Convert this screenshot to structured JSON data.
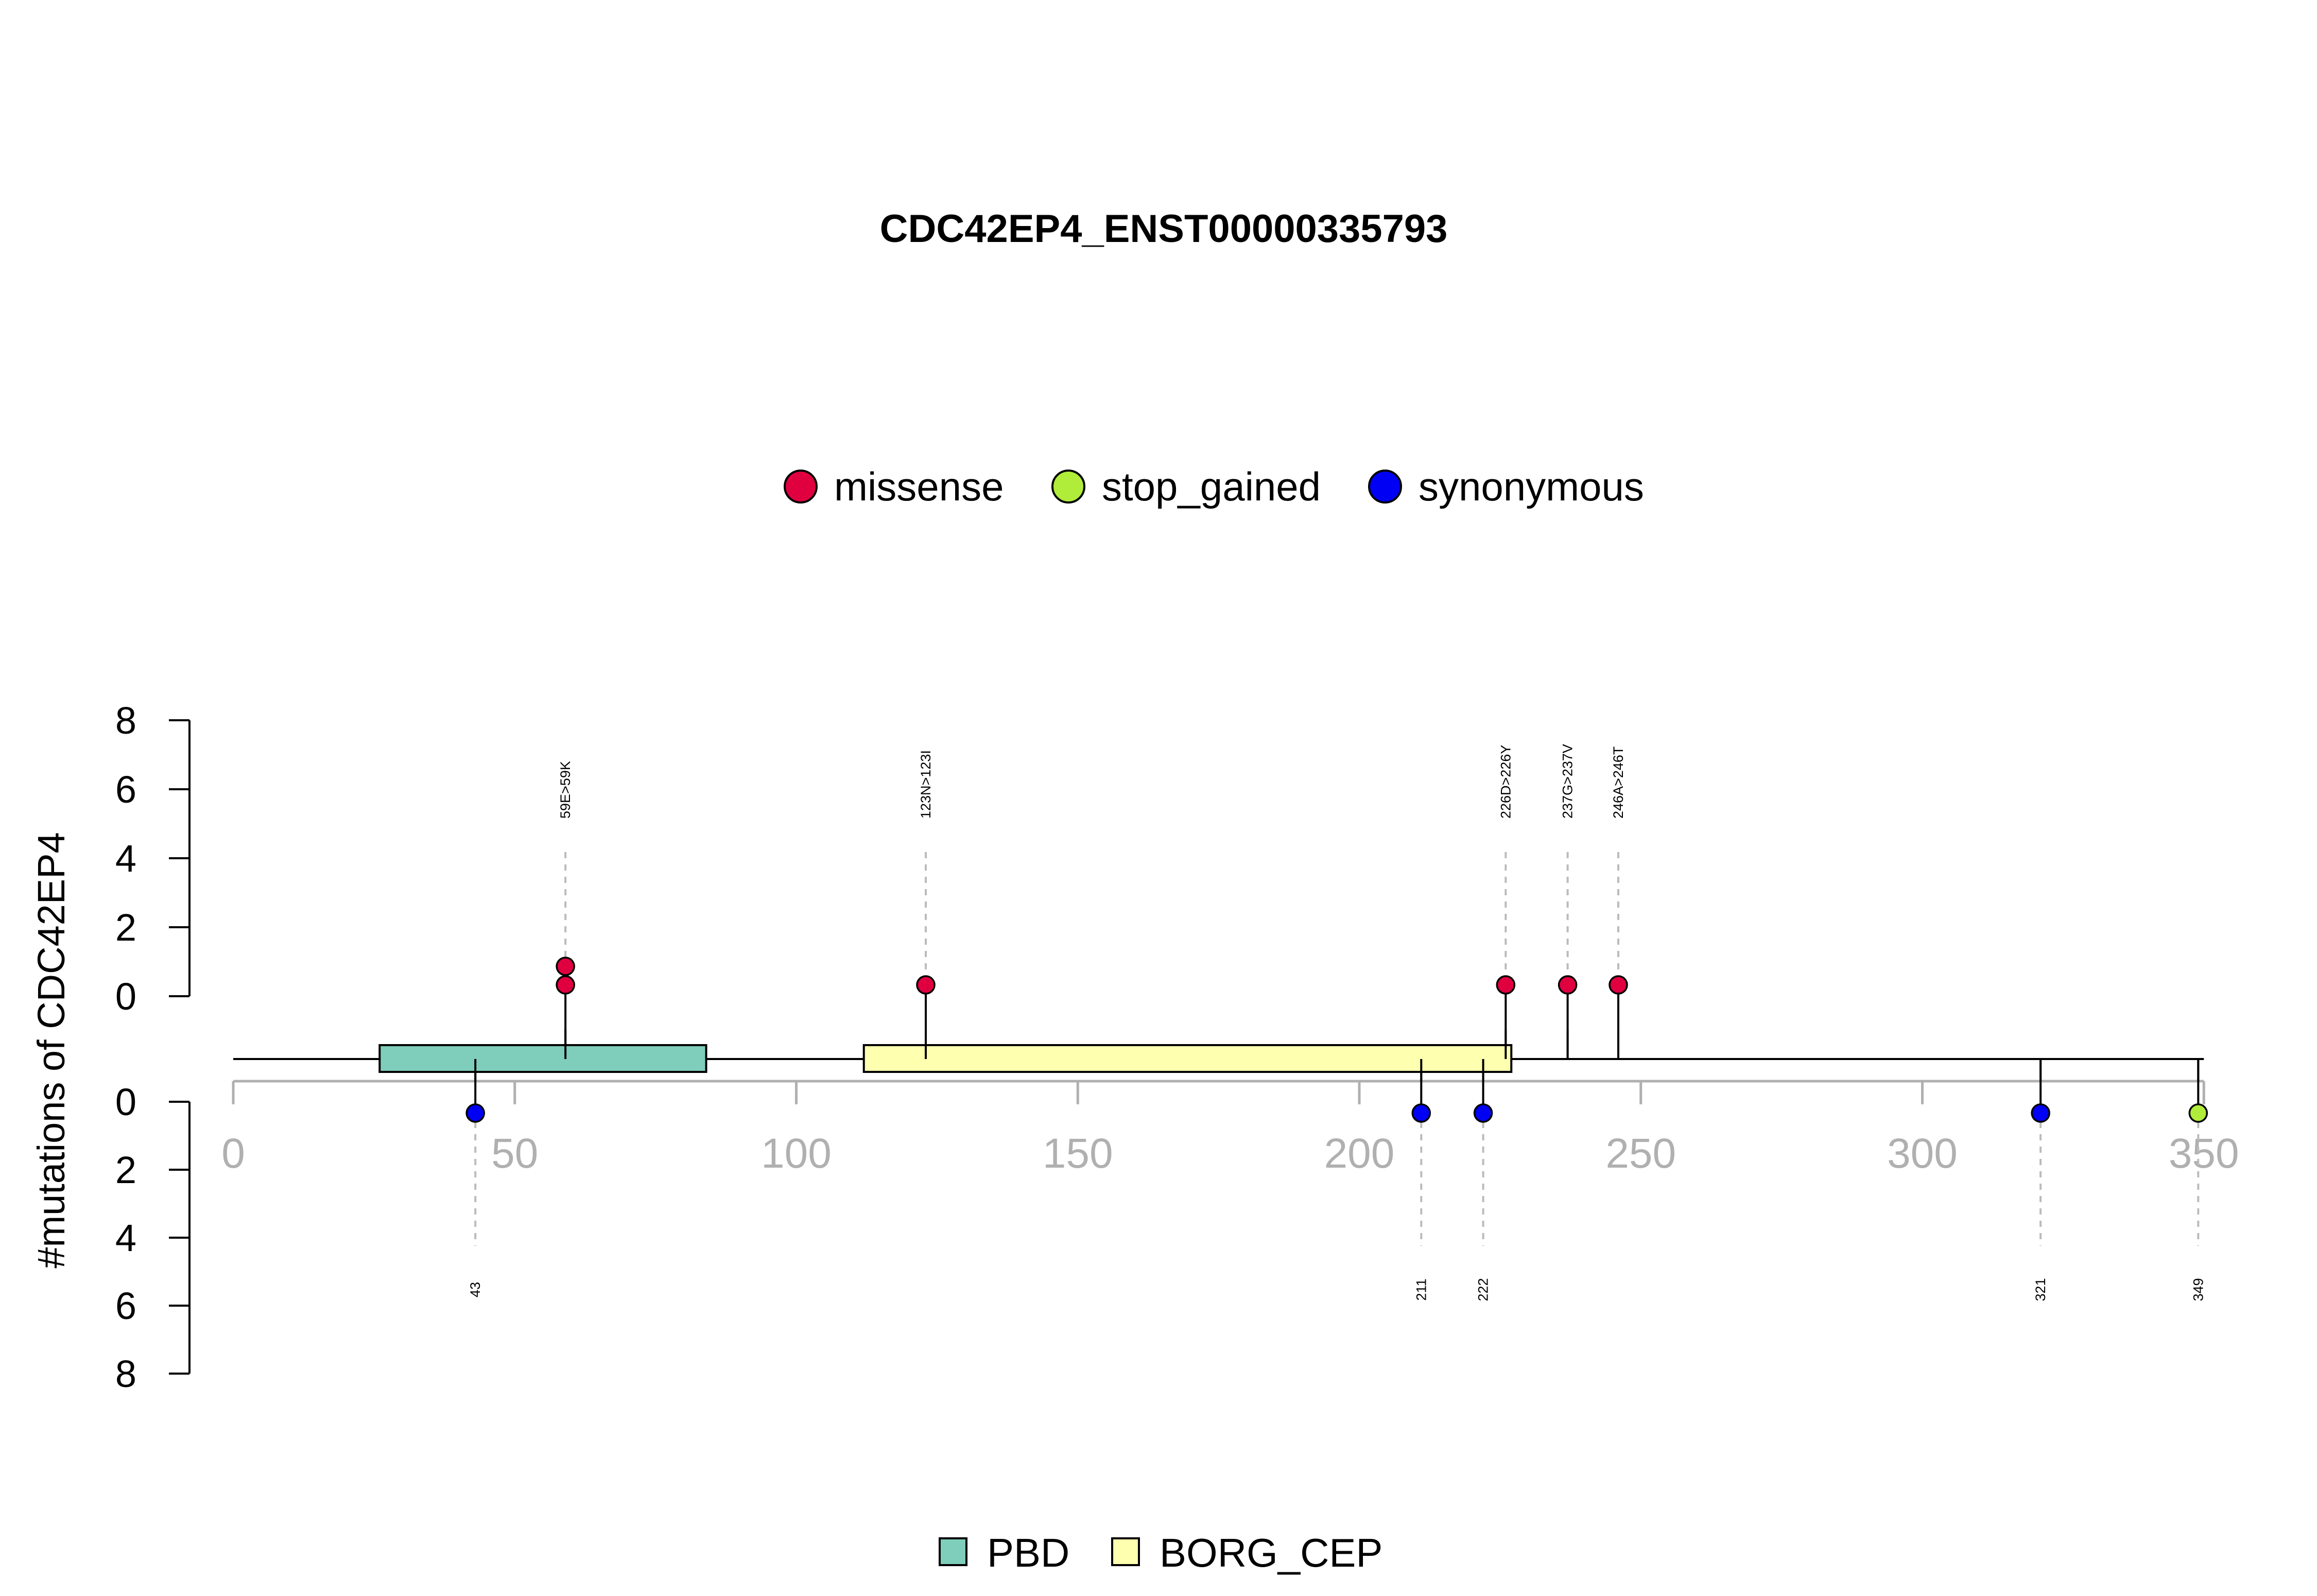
{
  "chart_data": {
    "type": "lollipop",
    "title": "CDC42EP4_ENST00000335793",
    "ylabel": "#mutations of CDC42EP4",
    "xlim": [
      0,
      350
    ],
    "x_ticks": [
      "0",
      "50",
      "100",
      "150",
      "200",
      "250",
      "300",
      "350"
    ],
    "x_tick_values": [
      0,
      50,
      100,
      150,
      200,
      250,
      300,
      350
    ],
    "y_ticks_top": [
      "0",
      "2",
      "4",
      "6",
      "8"
    ],
    "y_ticks_bottom": [
      "0",
      "2",
      "4",
      "6",
      "8"
    ],
    "y_tick_values": [
      0,
      2,
      4,
      6,
      8
    ],
    "protein_length": 349,
    "grid": false,
    "colors": {
      "missense": "#e00040",
      "stop_gained": "#b0ec3a",
      "synonymous": "#0000f5",
      "PBD": "#7fcdbb",
      "BORG_CEP": "#ffffb0",
      "axis": "#b0b0b0",
      "guide": "#bbbbbb"
    },
    "legend": {
      "position": "top-center",
      "entries": [
        {
          "name": "missense",
          "color": "#e00040"
        },
        {
          "name": "stop_gained",
          "color": "#b0ec3a"
        },
        {
          "name": "synonymous",
          "color": "#0000f5"
        }
      ]
    },
    "domain_legend": {
      "position": "bottom-center",
      "entries": [
        {
          "name": "PBD",
          "color": "#7fcdbb"
        },
        {
          "name": "BORG_CEP",
          "color": "#ffffb0"
        }
      ]
    },
    "domains": [
      {
        "name": "PBD",
        "start": 26,
        "end": 84,
        "color": "#7fcdbb"
      },
      {
        "name": "BORG_CEP",
        "start": 112,
        "end": 227,
        "color": "#ffffb0"
      }
    ],
    "mutations_top": [
      {
        "position": 59,
        "count": 2,
        "type": "missense",
        "label": "59E>59K"
      },
      {
        "position": 123,
        "count": 1,
        "type": "missense",
        "label": "123N>123I"
      },
      {
        "position": 226,
        "count": 1,
        "type": "missense",
        "label": "226D>226Y"
      },
      {
        "position": 237,
        "count": 1,
        "type": "missense",
        "label": "237G>237V"
      },
      {
        "position": 246,
        "count": 1,
        "type": "missense",
        "label": "246A>246T"
      }
    ],
    "mutations_bottom": [
      {
        "position": 43,
        "count": 1,
        "type": "synonymous",
        "label": "43"
      },
      {
        "position": 211,
        "count": 1,
        "type": "synonymous",
        "label": "211"
      },
      {
        "position": 222,
        "count": 1,
        "type": "synonymous",
        "label": "222"
      },
      {
        "position": 321,
        "count": 1,
        "type": "synonymous",
        "label": "321"
      },
      {
        "position": 349,
        "count": 1,
        "type": "stop_gained",
        "label": "349"
      }
    ]
  }
}
